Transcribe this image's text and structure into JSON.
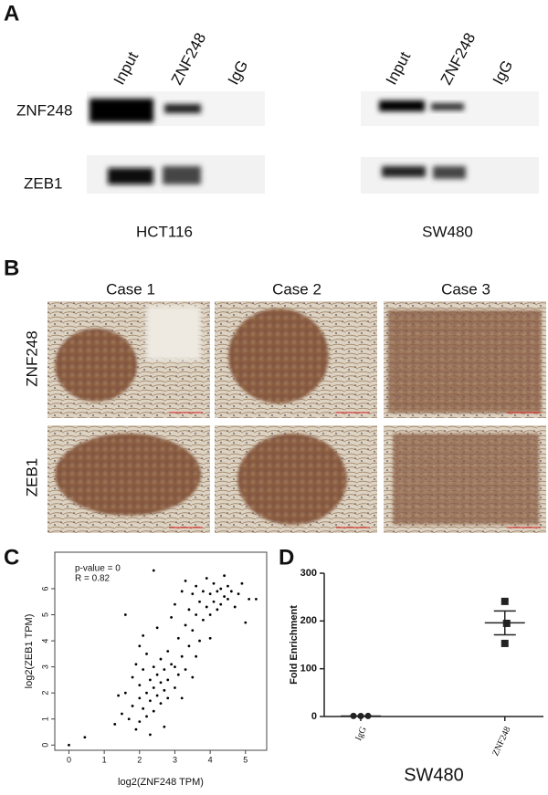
{
  "panel_a": {
    "label": "A",
    "lanes": [
      "Input",
      "ZNF248",
      "IgG"
    ],
    "proteins": [
      "ZNF248",
      "ZEB1"
    ],
    "cell_lines": [
      "HCT116",
      "SW480"
    ]
  },
  "panel_b": {
    "label": "B",
    "cases": [
      "Case 1",
      "Case 2",
      "Case 3"
    ],
    "stains": [
      "ZNF248",
      "ZEB1"
    ]
  },
  "chart_data": [
    {
      "type": "scatter",
      "panel": "C",
      "annotations": [
        "p-value = 0",
        "R = 0.82"
      ],
      "x_label": "log2(ZNF248 TPM)",
      "y_label": "log2(ZEB1 TPM)",
      "x": [
        0,
        0.45,
        1.3,
        1.5,
        1.6,
        1.6,
        1.7,
        1.8,
        1.8,
        1.9,
        1.9,
        2.0,
        2.0,
        2.0,
        2.1,
        2.1,
        2.1,
        2.2,
        2.2,
        2.2,
        2.3,
        2.3,
        2.3,
        2.4,
        2.4,
        2.4,
        2.5,
        2.5,
        2.5,
        2.6,
        2.6,
        2.6,
        2.7,
        2.7,
        2.8,
        2.8,
        2.8,
        2.9,
        2.9,
        3.0,
        3.0,
        3.0,
        3.1,
        3.1,
        3.2,
        3.2,
        3.3,
        3.3,
        3.3,
        3.4,
        3.4,
        3.5,
        3.5,
        3.5,
        3.6,
        3.6,
        3.7,
        3.7,
        3.8,
        3.8,
        3.9,
        3.9,
        4.0,
        4.0,
        4.0,
        4.1,
        4.1,
        4.2,
        4.2,
        4.3,
        4.3,
        4.4,
        4.4,
        4.5,
        4.5,
        4.6,
        4.7,
        4.8,
        4.9,
        5.0,
        5.1,
        5.3,
        2.4,
        1.4,
        2.7,
        3.2,
        2.0,
        3.6
      ],
      "values": [
        0,
        0.3,
        0.8,
        1.2,
        2.0,
        5.0,
        1.0,
        1.5,
        2.6,
        0.6,
        3.1,
        1.8,
        2.3,
        0.9,
        1.4,
        2.9,
        4.2,
        1.1,
        2.0,
        3.5,
        1.7,
        2.5,
        0.4,
        2.2,
        3.0,
        1.3,
        1.9,
        2.7,
        4.5,
        2.4,
        1.6,
        3.3,
        2.1,
        2.9,
        1.8,
        3.6,
        2.5,
        3.1,
        4.9,
        2.2,
        3.0,
        5.4,
        2.7,
        4.1,
        3.4,
        5.9,
        2.9,
        4.6,
        6.3,
        3.8,
        5.2,
        4.4,
        5.8,
        2.6,
        5.0,
        6.1,
        4.0,
        5.5,
        4.8,
        5.9,
        5.3,
        6.4,
        5.0,
        5.8,
        4.1,
        5.5,
        6.2,
        5.2,
        5.9,
        6.0,
        5.4,
        5.7,
        6.5,
        5.6,
        6.1,
        5.9,
        5.3,
        5.8,
        6.2,
        4.7,
        5.6,
        5.6,
        6.7,
        1.9,
        0.7,
        1.8,
        3.8,
        3.4
      ],
      "color": "#000000",
      "xlim": [
        -0.4,
        5.6
      ],
      "ylim": [
        -0.2,
        7.4
      ],
      "xticks": [
        0,
        1,
        2,
        3,
        4,
        5
      ],
      "yticks": [
        0,
        1,
        2,
        3,
        4,
        5,
        6
      ]
    },
    {
      "type": "dot",
      "panel": "D",
      "title": "SW480",
      "y_label": "Fold Enrichment",
      "categories": [
        "IgG",
        "ZNF248"
      ],
      "markers": [
        "circle",
        "square"
      ],
      "values": [
        [
          1.2,
          0.9,
          1.1
        ],
        [
          241,
          195,
          153
        ]
      ],
      "means": [
        1,
        196
      ],
      "errors": [
        0.2,
        25
      ],
      "color": "#222222",
      "ylim": [
        0,
        300
      ],
      "yticks": [
        0,
        100,
        200,
        300
      ]
    }
  ]
}
